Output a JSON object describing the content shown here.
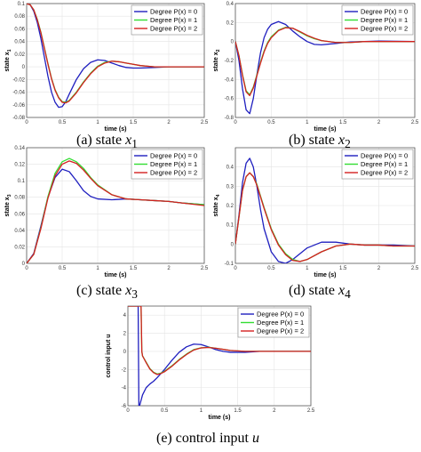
{
  "legend_labels": [
    "Degree P(x) = 0",
    "Degree P(x) = 1",
    "Degree P(x) = 2"
  ],
  "series_colors": [
    "#1f1fbf",
    "#33dd33",
    "#d42020"
  ],
  "chart_data": [
    {
      "type": "line",
      "caption_prefix": "(a) state ",
      "caption_var": "x",
      "caption_sub": "1",
      "xlabel": "time (s)",
      "ylabel": "state x",
      "ylabel_sub": "1",
      "xlim": [
        0,
        2.5
      ],
      "ylim": [
        -0.08,
        0.1
      ],
      "xticks": [
        "0",
        "0.5",
        "1",
        "1.5",
        "2",
        "2.5"
      ],
      "yticks": [
        "-0.08",
        "-0.06",
        "-0.04",
        "-0.02",
        "0",
        "0.02",
        "0.04",
        "0.06",
        "0.08",
        "0.1"
      ],
      "yticks_v": [
        -0.08,
        -0.06,
        -0.04,
        -0.02,
        0,
        0.02,
        0.04,
        0.06,
        0.08,
        0.1
      ],
      "legend_pos": "top-right",
      "series": [
        {
          "name": "Degree P(x) = 0",
          "x": [
            0,
            0.05,
            0.1,
            0.15,
            0.2,
            0.25,
            0.3,
            0.35,
            0.4,
            0.45,
            0.5,
            0.55,
            0.6,
            0.7,
            0.8,
            0.9,
            1.0,
            1.1,
            1.2,
            1.3,
            1.4,
            1.5,
            1.6,
            1.8,
            2.0,
            2.2,
            2.5
          ],
          "y": [
            0.1,
            0.098,
            0.088,
            0.07,
            0.045,
            0.015,
            -0.015,
            -0.04,
            -0.056,
            -0.064,
            -0.063,
            -0.055,
            -0.043,
            -0.02,
            -0.003,
            0.007,
            0.011,
            0.01,
            0.006,
            0.002,
            -0.001,
            -0.002,
            -0.002,
            -0.001,
            0,
            0,
            0
          ]
        },
        {
          "name": "Degree P(x) = 1",
          "x": [
            0,
            0.05,
            0.1,
            0.15,
            0.2,
            0.25,
            0.3,
            0.35,
            0.4,
            0.45,
            0.5,
            0.55,
            0.6,
            0.7,
            0.8,
            0.9,
            1.0,
            1.1,
            1.2,
            1.3,
            1.4,
            1.5,
            1.6,
            1.8,
            2.0,
            2.2,
            2.5
          ],
          "y": [
            0.1,
            0.098,
            0.09,
            0.075,
            0.055,
            0.03,
            0.005,
            -0.018,
            -0.036,
            -0.048,
            -0.055,
            -0.056,
            -0.053,
            -0.04,
            -0.024,
            -0.01,
            0.001,
            0.007,
            0.009,
            0.008,
            0.006,
            0.004,
            0.002,
            0,
            0,
            0,
            0
          ]
        },
        {
          "name": "Degree P(x) = 2",
          "x": [
            0,
            0.05,
            0.1,
            0.15,
            0.2,
            0.25,
            0.3,
            0.35,
            0.4,
            0.45,
            0.5,
            0.55,
            0.6,
            0.7,
            0.8,
            0.9,
            1.0,
            1.1,
            1.2,
            1.3,
            1.4,
            1.5,
            1.6,
            1.8,
            2.0,
            2.2,
            2.5
          ],
          "y": [
            0.1,
            0.098,
            0.09,
            0.074,
            0.054,
            0.029,
            0.004,
            -0.019,
            -0.037,
            -0.049,
            -0.056,
            -0.057,
            -0.054,
            -0.041,
            -0.025,
            -0.011,
            0.0,
            0.006,
            0.009,
            0.008,
            0.006,
            0.004,
            0.002,
            0,
            0,
            0,
            0
          ]
        }
      ]
    },
    {
      "type": "line",
      "caption_prefix": "(b) state ",
      "caption_var": "x",
      "caption_sub": "2",
      "xlabel": "time (s)",
      "ylabel": "state x",
      "ylabel_sub": "2",
      "xlim": [
        0,
        2.5
      ],
      "ylim": [
        -0.8,
        0.4
      ],
      "xticks": [
        "0",
        "0.5",
        "1",
        "1.5",
        "2",
        "2.5"
      ],
      "yticks": [
        "-0.8",
        "-0.6",
        "-0.4",
        "-0.2",
        "0",
        "0.2",
        "0.4"
      ],
      "yticks_v": [
        -0.8,
        -0.6,
        -0.4,
        -0.2,
        0,
        0.2,
        0.4
      ],
      "legend_pos": "top-right",
      "series": [
        {
          "name": "Degree P(x) = 0",
          "x": [
            0,
            0.05,
            0.1,
            0.15,
            0.2,
            0.25,
            0.3,
            0.35,
            0.4,
            0.45,
            0.5,
            0.6,
            0.7,
            0.8,
            0.9,
            1.0,
            1.1,
            1.2,
            1.4,
            1.6,
            1.8,
            2.0,
            2.5
          ],
          "y": [
            0,
            -0.2,
            -0.5,
            -0.72,
            -0.76,
            -0.6,
            -0.35,
            -0.12,
            0.04,
            0.13,
            0.18,
            0.21,
            0.18,
            0.11,
            0.05,
            0.0,
            -0.03,
            -0.035,
            -0.02,
            -0.005,
            0,
            0.005,
            0
          ]
        },
        {
          "name": "Degree P(x) = 1",
          "x": [
            0,
            0.05,
            0.1,
            0.15,
            0.2,
            0.25,
            0.3,
            0.35,
            0.4,
            0.45,
            0.5,
            0.6,
            0.7,
            0.8,
            0.9,
            1.0,
            1.1,
            1.2,
            1.4,
            1.6,
            1.8,
            2.0,
            2.5
          ],
          "y": [
            0,
            -0.15,
            -0.35,
            -0.52,
            -0.56,
            -0.48,
            -0.35,
            -0.22,
            -0.1,
            -0.01,
            0.05,
            0.12,
            0.15,
            0.14,
            0.1,
            0.06,
            0.03,
            0.01,
            -0.01,
            -0.01,
            0,
            0,
            0
          ]
        },
        {
          "name": "Degree P(x) = 2",
          "x": [
            0,
            0.05,
            0.1,
            0.15,
            0.2,
            0.25,
            0.3,
            0.35,
            0.4,
            0.45,
            0.5,
            0.6,
            0.7,
            0.8,
            0.9,
            1.0,
            1.1,
            1.2,
            1.4,
            1.6,
            1.8,
            2.0,
            2.5
          ],
          "y": [
            0,
            -0.15,
            -0.36,
            -0.53,
            -0.57,
            -0.49,
            -0.36,
            -0.23,
            -0.11,
            -0.02,
            0.04,
            0.115,
            0.145,
            0.14,
            0.105,
            0.065,
            0.035,
            0.01,
            -0.01,
            -0.01,
            0,
            0,
            0
          ]
        }
      ]
    },
    {
      "type": "line",
      "caption_prefix": "(c) state ",
      "caption_var": "x",
      "caption_sub": "3",
      "xlabel": "time (s)",
      "ylabel": "state x",
      "ylabel_sub": "3",
      "xlim": [
        0,
        2.5
      ],
      "ylim": [
        0,
        0.14
      ],
      "xticks": [
        "0",
        "0.5",
        "1",
        "1.5",
        "2",
        "2.5"
      ],
      "yticks": [
        "0",
        "0.02",
        "0.04",
        "0.06",
        "0.08",
        "0.1",
        "0.12",
        "0.14"
      ],
      "yticks_v": [
        0,
        0.02,
        0.04,
        0.06,
        0.08,
        0.1,
        0.12,
        0.14
      ],
      "legend_pos": "top-right",
      "series": [
        {
          "name": "Degree P(x) = 0",
          "x": [
            0,
            0.1,
            0.2,
            0.3,
            0.4,
            0.5,
            0.6,
            0.7,
            0.8,
            0.9,
            1.0,
            1.2,
            1.4,
            1.6,
            1.8,
            2.0,
            2.2,
            2.5
          ],
          "y": [
            0,
            0.012,
            0.045,
            0.08,
            0.104,
            0.114,
            0.111,
            0.1,
            0.088,
            0.081,
            0.078,
            0.077,
            0.078,
            0.077,
            0.076,
            0.075,
            0.073,
            0.071
          ]
        },
        {
          "name": "Degree P(x) = 1",
          "x": [
            0,
            0.1,
            0.2,
            0.3,
            0.4,
            0.5,
            0.6,
            0.7,
            0.8,
            0.9,
            1.0,
            1.2,
            1.4,
            1.6,
            1.8,
            2.0,
            2.2,
            2.5
          ],
          "y": [
            0,
            0.011,
            0.043,
            0.081,
            0.109,
            0.123,
            0.127,
            0.123,
            0.115,
            0.104,
            0.095,
            0.083,
            0.078,
            0.077,
            0.076,
            0.075,
            0.073,
            0.071
          ]
        },
        {
          "name": "Degree P(x) = 2",
          "x": [
            0,
            0.1,
            0.2,
            0.3,
            0.4,
            0.5,
            0.6,
            0.7,
            0.8,
            0.9,
            1.0,
            1.2,
            1.4,
            1.6,
            1.8,
            2.0,
            2.2,
            2.5
          ],
          "y": [
            0,
            0.011,
            0.042,
            0.079,
            0.106,
            0.12,
            0.124,
            0.121,
            0.113,
            0.103,
            0.094,
            0.083,
            0.078,
            0.077,
            0.076,
            0.075,
            0.073,
            0.07
          ]
        }
      ]
    },
    {
      "type": "line",
      "caption_prefix": "(d) state ",
      "caption_var": "x",
      "caption_sub": "4",
      "xlabel": "time (s)",
      "ylabel": "state x",
      "ylabel_sub": "4",
      "xlim": [
        0,
        2.5
      ],
      "ylim": [
        -0.1,
        0.5
      ],
      "xticks": [
        "0",
        "0.5",
        "1",
        "1.5",
        "2",
        "2.5"
      ],
      "yticks": [
        "-0.1",
        "0",
        "0.1",
        "0.2",
        "0.3",
        "0.4"
      ],
      "yticks_v": [
        -0.1,
        0,
        0.1,
        0.2,
        0.3,
        0.4
      ],
      "legend_pos": "top-right",
      "series": [
        {
          "name": "Degree P(x) = 0",
          "x": [
            0,
            0.05,
            0.1,
            0.15,
            0.2,
            0.25,
            0.3,
            0.35,
            0.4,
            0.5,
            0.6,
            0.7,
            0.8,
            0.9,
            1.0,
            1.2,
            1.4,
            1.6,
            1.8,
            2.0,
            2.2,
            2.5
          ],
          "y": [
            0,
            0.15,
            0.32,
            0.42,
            0.445,
            0.4,
            0.3,
            0.18,
            0.08,
            -0.04,
            -0.09,
            -0.1,
            -0.08,
            -0.05,
            -0.02,
            0.01,
            0.01,
            0.0,
            -0.005,
            -0.005,
            -0.005,
            -0.01
          ]
        },
        {
          "name": "Degree P(x) = 1",
          "x": [
            0,
            0.05,
            0.1,
            0.15,
            0.2,
            0.25,
            0.3,
            0.35,
            0.4,
            0.5,
            0.6,
            0.7,
            0.8,
            0.9,
            1.0,
            1.2,
            1.4,
            1.6,
            1.8,
            2.0,
            2.2,
            2.5
          ],
          "y": [
            0,
            0.14,
            0.28,
            0.35,
            0.37,
            0.35,
            0.31,
            0.25,
            0.19,
            0.08,
            0.0,
            -0.05,
            -0.08,
            -0.09,
            -0.08,
            -0.04,
            -0.01,
            0.0,
            -0.005,
            -0.005,
            -0.01,
            -0.01
          ]
        },
        {
          "name": "Degree P(x) = 2",
          "x": [
            0,
            0.05,
            0.1,
            0.15,
            0.2,
            0.25,
            0.3,
            0.35,
            0.4,
            0.5,
            0.6,
            0.7,
            0.8,
            0.9,
            1.0,
            1.2,
            1.4,
            1.6,
            1.8,
            2.0,
            2.2,
            2.5
          ],
          "y": [
            0,
            0.14,
            0.28,
            0.35,
            0.37,
            0.35,
            0.305,
            0.245,
            0.185,
            0.075,
            -0.005,
            -0.055,
            -0.085,
            -0.09,
            -0.08,
            -0.04,
            -0.01,
            0.0,
            -0.005,
            -0.005,
            -0.01,
            -0.01
          ]
        }
      ]
    },
    {
      "type": "line",
      "caption_prefix": "(e) control input ",
      "caption_var": "u",
      "caption_sub": "",
      "xlabel": "time (s)",
      "ylabel": "control input u",
      "ylabel_sub": "",
      "xlim": [
        0,
        2.5
      ],
      "ylim": [
        -6,
        5
      ],
      "xticks": [
        "0",
        "0.5",
        "1",
        "1.5",
        "2",
        "2.5"
      ],
      "yticks": [
        "-6",
        "-4",
        "-2",
        "0",
        "2",
        "4"
      ],
      "yticks_v": [
        -6,
        -4,
        -2,
        0,
        2,
        4
      ],
      "legend_pos": "top-right",
      "series": [
        {
          "name": "Degree P(x) = 0",
          "x": [
            0,
            0.1,
            0.14,
            0.15,
            0.16,
            0.2,
            0.25,
            0.3,
            0.35,
            0.4,
            0.5,
            0.6,
            0.7,
            0.8,
            0.9,
            1.0,
            1.1,
            1.2,
            1.3,
            1.4,
            1.6,
            1.8,
            2.0,
            2.5
          ],
          "y": [
            5,
            5,
            5,
            -6,
            -6,
            -4.8,
            -4.0,
            -3.6,
            -3.3,
            -2.9,
            -2.0,
            -1.0,
            -0.1,
            0.5,
            0.8,
            0.75,
            0.5,
            0.2,
            0.0,
            -0.1,
            -0.1,
            0.0,
            0.0,
            0.0
          ]
        },
        {
          "name": "Degree P(x) = 1",
          "x": [
            0,
            0.05,
            0.1,
            0.15,
            0.18,
            0.19,
            0.2,
            0.25,
            0.3,
            0.35,
            0.4,
            0.45,
            0.5,
            0.6,
            0.7,
            0.8,
            0.9,
            1.0,
            1.1,
            1.2,
            1.4,
            1.6,
            2.0,
            2.5
          ],
          "y": [
            5,
            5,
            5,
            5,
            5,
            0.0,
            -0.5,
            -1.2,
            -1.9,
            -2.3,
            -2.5,
            -2.4,
            -2.2,
            -1.6,
            -0.9,
            -0.3,
            0.2,
            0.4,
            0.45,
            0.35,
            0.1,
            0.0,
            0.0,
            0.0
          ]
        },
        {
          "name": "Degree P(x) = 2",
          "x": [
            0,
            0.05,
            0.1,
            0.15,
            0.18,
            0.19,
            0.2,
            0.25,
            0.3,
            0.35,
            0.4,
            0.45,
            0.5,
            0.6,
            0.7,
            0.8,
            0.9,
            1.0,
            1.1,
            1.2,
            1.4,
            1.6,
            2.0,
            2.5
          ],
          "y": [
            5,
            5,
            5,
            5,
            5,
            0.0,
            -0.5,
            -1.25,
            -1.95,
            -2.35,
            -2.55,
            -2.45,
            -2.25,
            -1.65,
            -0.95,
            -0.35,
            0.15,
            0.38,
            0.43,
            0.35,
            0.1,
            0.0,
            0.0,
            0.0
          ]
        }
      ]
    }
  ]
}
